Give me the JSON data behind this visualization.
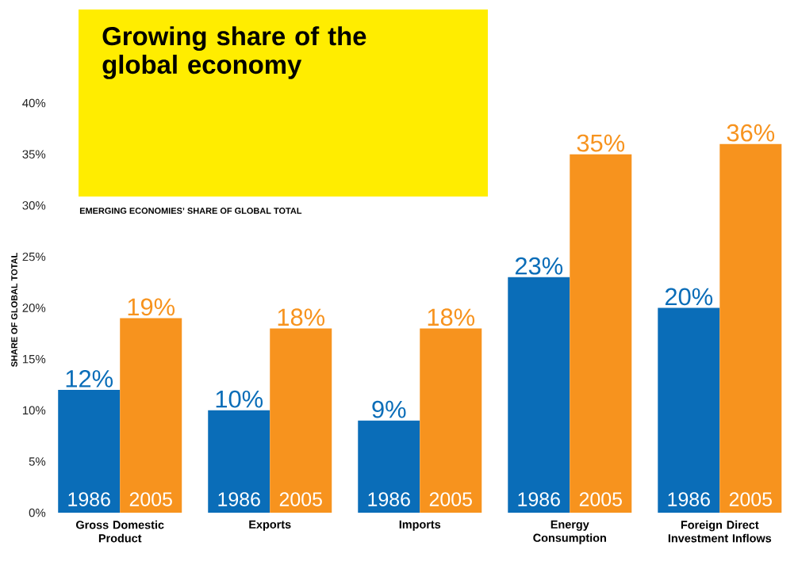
{
  "chart_data": {
    "type": "bar",
    "title": "Growing share of the global economy",
    "subtitle": "EMERGING ECONOMIES’ SHARE OF GLOBAL TOTAL",
    "ylabel": "SHARE OF GLOBAL TOTAL",
    "categories": [
      "Gross Domestic Product",
      "Exports",
      "Imports",
      "Energy Consumption",
      "Foreign Direct Investment Inflows"
    ],
    "series": [
      {
        "name": "1986",
        "color": "#0a6db8",
        "values": [
          12,
          10,
          9,
          23,
          20
        ],
        "value_labels": [
          "12%",
          "10%",
          "9%",
          "23%",
          "20%"
        ]
      },
      {
        "name": "2005",
        "color": "#f7931e",
        "values": [
          19,
          18,
          18,
          35,
          36
        ],
        "value_labels": [
          "19%",
          "18%",
          "18%",
          "35%",
          "36%"
        ]
      }
    ],
    "ylim": [
      0,
      40
    ],
    "yticks": [
      {
        "value": 0,
        "label": "0%"
      },
      {
        "value": 5,
        "label": "5%"
      },
      {
        "value": 10,
        "label": "10%"
      },
      {
        "value": 15,
        "label": "15%"
      },
      {
        "value": 20,
        "label": "20%"
      },
      {
        "value": 25,
        "label": "25%"
      },
      {
        "value": 30,
        "label": "30%"
      },
      {
        "value": 35,
        "label": "35%"
      },
      {
        "value": 40,
        "label": "40%"
      }
    ]
  }
}
